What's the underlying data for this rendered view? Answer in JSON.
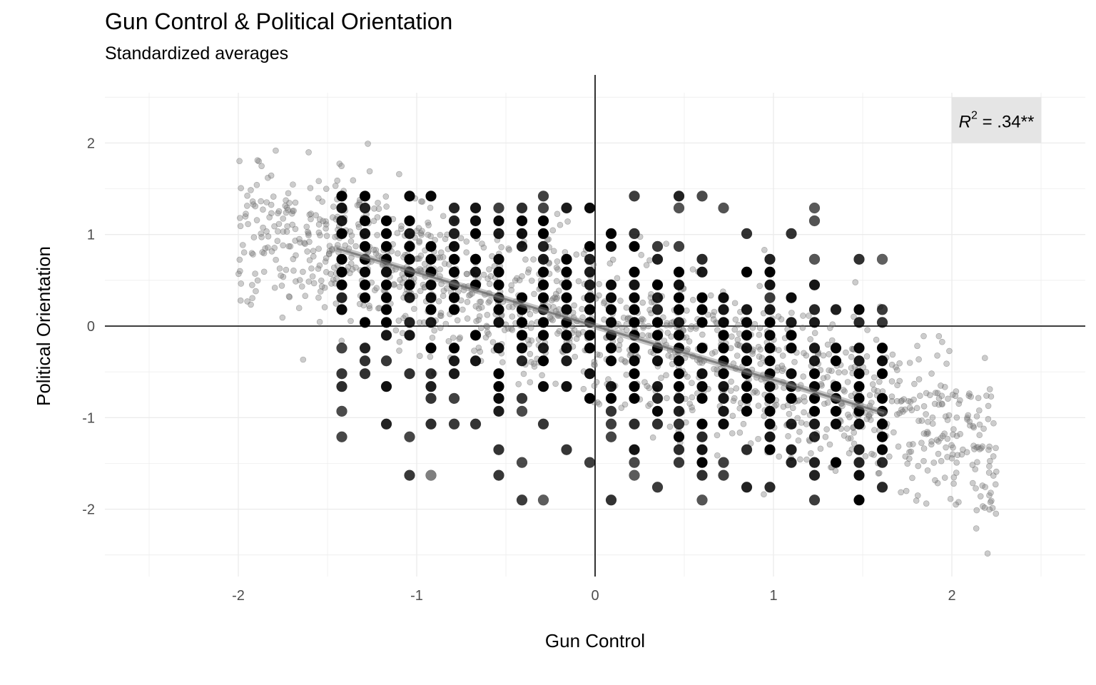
{
  "chart_data": {
    "type": "scatter",
    "title": "Gun Control & Political Orientation",
    "subtitle": "Standardized averages",
    "xlabel": "Gun Control",
    "ylabel": "Political Orientation",
    "xlim": [
      -2.5,
      2.75
    ],
    "ylim": [
      -2.6,
      2.75
    ],
    "xticks": [
      -2,
      -1,
      0,
      1,
      2
    ],
    "yticks": [
      -2,
      -1,
      0,
      1,
      2
    ],
    "grid": true,
    "reference_lines": {
      "x": 0,
      "y": 0
    },
    "annotation": {
      "base": "R",
      "superscript": "2",
      "rest": " = .34**",
      "x": 2.25,
      "y": 2.25
    },
    "series": [
      {
        "kind": "individual-points-jittered",
        "point_color": "#808080",
        "approx_count": 1300,
        "x_range": [
          -2.0,
          2.25
        ],
        "y_range": [
          -2.5,
          2.0
        ]
      },
      {
        "kind": "grid-aggregate-points",
        "point_color": "#000000",
        "x_levels": [
          -1.42,
          -1.29,
          -1.17,
          -1.04,
          -0.92,
          -0.79,
          -0.67,
          -0.54,
          -0.41,
          -0.29,
          -0.16,
          -0.03,
          0.09,
          0.22,
          0.35,
          0.47,
          0.6,
          0.72,
          0.85,
          0.98,
          1.1,
          1.23,
          1.35,
          1.48,
          1.61
        ],
        "y_levels": [
          1.42,
          1.29,
          1.15,
          1.01,
          0.87,
          0.73,
          0.59,
          0.45,
          0.31,
          0.18,
          0.04,
          -0.1,
          -0.24,
          -0.38,
          -0.52,
          -0.66,
          -0.79,
          -0.93,
          -1.07,
          -1.21,
          -1.35,
          -1.49,
          -1.63,
          -1.76,
          -1.9
        ]
      },
      {
        "kind": "regression-line",
        "color": "#808080",
        "x": [
          -1.45,
          1.62
        ],
        "y": [
          0.85,
          -0.95
        ]
      }
    ]
  }
}
